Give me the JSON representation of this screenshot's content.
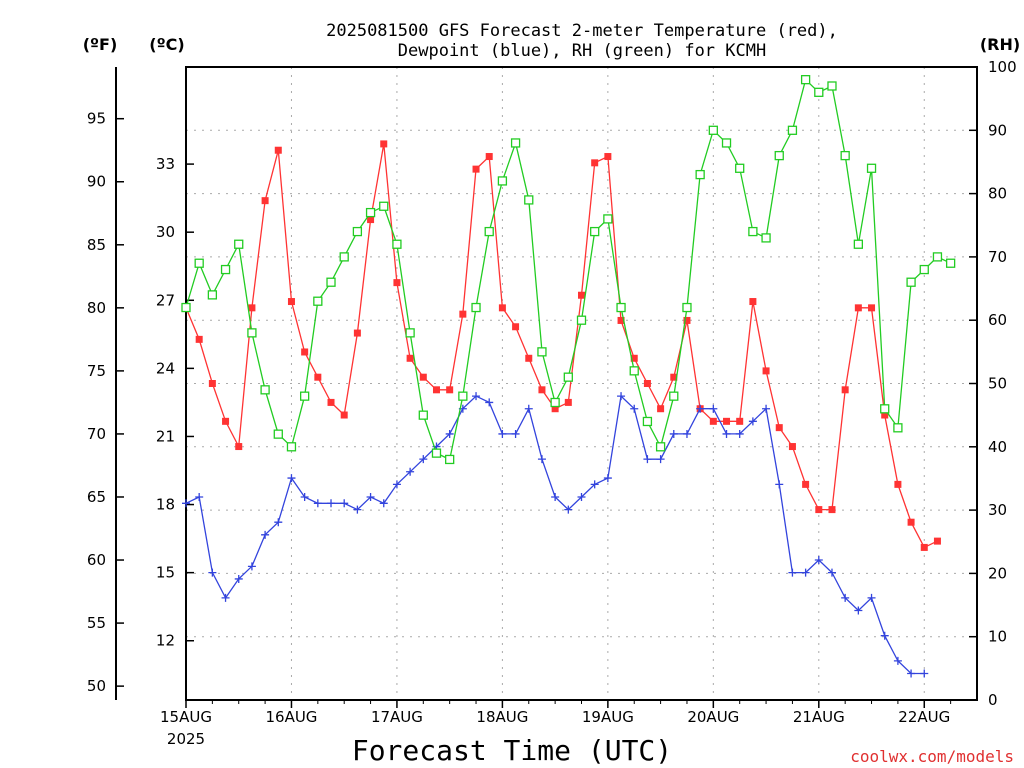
{
  "title_line1": "2025081500 GFS Forecast 2-meter Temperature (red),",
  "title_line2": "Dewpoint (blue), RH (green) for KCMH",
  "unit_f": "(ºF)",
  "unit_c": "(ºC)",
  "unit_rh": "(RH)",
  "xlabel": "Forecast Time (UTC)",
  "credit": "coolwx.com/models",
  "year_label": "2025",
  "colors": {
    "temperature": "#ff3333",
    "dewpoint": "#3344dd",
    "rh": "#22cc22"
  },
  "chart_data": {
    "type": "line",
    "x_axis": {
      "unit": "hours since 15AUG 00Z",
      "range": [
        0,
        180
      ],
      "ticks": [
        0,
        24,
        48,
        72,
        96,
        120,
        144,
        168
      ],
      "tick_labels": [
        "15AUG",
        "16AUG",
        "17AUG",
        "18AUG",
        "19AUG",
        "20AUG",
        "21AUG",
        "22AUG"
      ]
    },
    "y_left_f": {
      "range": [
        48.9,
        99.1
      ],
      "ticks": [
        50,
        55,
        60,
        65,
        70,
        75,
        80,
        85,
        90,
        95
      ]
    },
    "y_left_c": {
      "ticks": [
        12,
        15,
        18,
        21,
        24,
        27,
        30,
        33
      ]
    },
    "y_right_rh": {
      "range": [
        0,
        100
      ],
      "ticks": [
        0,
        10,
        20,
        30,
        40,
        50,
        60,
        70,
        80,
        90,
        100
      ]
    },
    "grid": true,
    "series": [
      {
        "name": "Temperature",
        "color": "#ff3333",
        "marker": "filled-square",
        "axis": "F",
        "points": [
          [
            0,
            80
          ],
          [
            3,
            77.5
          ],
          [
            6,
            74
          ],
          [
            9,
            71
          ],
          [
            12,
            69
          ],
          [
            15,
            80
          ],
          [
            18,
            88.5
          ],
          [
            21,
            92.5
          ],
          [
            24,
            80.5
          ],
          [
            27,
            76.5
          ],
          [
            30,
            74.5
          ],
          [
            33,
            72.5
          ],
          [
            36,
            71.5
          ],
          [
            39,
            78
          ],
          [
            42,
            87
          ],
          [
            45,
            93
          ],
          [
            48,
            82
          ],
          [
            51,
            76
          ],
          [
            54,
            74.5
          ],
          [
            57,
            73.5
          ],
          [
            60,
            73.5
          ],
          [
            63,
            79.5
          ],
          [
            66,
            91
          ],
          [
            69,
            92
          ],
          [
            72,
            80
          ],
          [
            75,
            78.5
          ],
          [
            78,
            76
          ],
          [
            81,
            73.5
          ],
          [
            84,
            72
          ],
          [
            87,
            72.5
          ],
          [
            90,
            81
          ],
          [
            93,
            91.5
          ],
          [
            96,
            92
          ],
          [
            99,
            79
          ],
          [
            102,
            76
          ],
          [
            105,
            74
          ],
          [
            108,
            72
          ],
          [
            111,
            74.5
          ],
          [
            114,
            79
          ],
          [
            117,
            72
          ],
          [
            120,
            71
          ],
          [
            123,
            71
          ],
          [
            126,
            71
          ],
          [
            129,
            80.5
          ],
          [
            132,
            75
          ],
          [
            135,
            70.5
          ],
          [
            138,
            69
          ],
          [
            141,
            66
          ],
          [
            144,
            64
          ],
          [
            147,
            64
          ],
          [
            150,
            73.5
          ],
          [
            153,
            80
          ],
          [
            156,
            80
          ],
          [
            159,
            71.5
          ],
          [
            162,
            66
          ],
          [
            165,
            63
          ],
          [
            168,
            61
          ],
          [
            171,
            61.5
          ]
        ]
      },
      {
        "name": "Dewpoint",
        "color": "#3344dd",
        "marker": "plus",
        "axis": "F",
        "points": [
          [
            0,
            64.5
          ],
          [
            3,
            65
          ],
          [
            6,
            59
          ],
          [
            9,
            57
          ],
          [
            12,
            58.5
          ],
          [
            15,
            59.5
          ],
          [
            18,
            62
          ],
          [
            21,
            63
          ],
          [
            24,
            66.5
          ],
          [
            27,
            65
          ],
          [
            30,
            64.5
          ],
          [
            33,
            64.5
          ],
          [
            36,
            64.5
          ],
          [
            39,
            64
          ],
          [
            42,
            65
          ],
          [
            45,
            64.5
          ],
          [
            48,
            66
          ],
          [
            51,
            67
          ],
          [
            54,
            68
          ],
          [
            57,
            69
          ],
          [
            60,
            70
          ],
          [
            63,
            72
          ],
          [
            66,
            73
          ],
          [
            69,
            72.5
          ],
          [
            72,
            70
          ],
          [
            75,
            70
          ],
          [
            78,
            72
          ],
          [
            81,
            68
          ],
          [
            84,
            65
          ],
          [
            87,
            64
          ],
          [
            90,
            65
          ],
          [
            93,
            66
          ],
          [
            96,
            66.5
          ],
          [
            99,
            73
          ],
          [
            102,
            72
          ],
          [
            105,
            68
          ],
          [
            108,
            68
          ],
          [
            111,
            70
          ],
          [
            114,
            70
          ],
          [
            117,
            72
          ],
          [
            120,
            72
          ],
          [
            123,
            70
          ],
          [
            126,
            70
          ],
          [
            129,
            71
          ],
          [
            132,
            72
          ],
          [
            135,
            66
          ],
          [
            138,
            59
          ],
          [
            141,
            59
          ],
          [
            144,
            60
          ],
          [
            147,
            59
          ],
          [
            150,
            57
          ],
          [
            153,
            56
          ],
          [
            156,
            57
          ],
          [
            159,
            54
          ],
          [
            162,
            52
          ],
          [
            165,
            51
          ],
          [
            168,
            51
          ]
        ]
      },
      {
        "name": "RH",
        "color": "#22cc22",
        "marker": "open-square",
        "axis": "RH",
        "points": [
          [
            0,
            62
          ],
          [
            3,
            69
          ],
          [
            6,
            64
          ],
          [
            9,
            68
          ],
          [
            12,
            72
          ],
          [
            15,
            58
          ],
          [
            18,
            49
          ],
          [
            21,
            42
          ],
          [
            24,
            40
          ],
          [
            27,
            48
          ],
          [
            30,
            63
          ],
          [
            33,
            66
          ],
          [
            36,
            70
          ],
          [
            39,
            74
          ],
          [
            42,
            77
          ],
          [
            45,
            78
          ],
          [
            48,
            72
          ],
          [
            51,
            58
          ],
          [
            54,
            45
          ],
          [
            57,
            39
          ],
          [
            60,
            38
          ],
          [
            63,
            48
          ],
          [
            66,
            62
          ],
          [
            69,
            74
          ],
          [
            72,
            82
          ],
          [
            75,
            88
          ],
          [
            78,
            79
          ],
          [
            81,
            55
          ],
          [
            84,
            47
          ],
          [
            87,
            51
          ],
          [
            90,
            60
          ],
          [
            93,
            74
          ],
          [
            96,
            76
          ],
          [
            99,
            62
          ],
          [
            102,
            52
          ],
          [
            105,
            44
          ],
          [
            108,
            40
          ],
          [
            111,
            48
          ],
          [
            114,
            62
          ],
          [
            117,
            83
          ],
          [
            120,
            90
          ],
          [
            123,
            88
          ],
          [
            126,
            84
          ],
          [
            129,
            74
          ],
          [
            132,
            73
          ],
          [
            135,
            86
          ],
          [
            138,
            90
          ],
          [
            141,
            98
          ],
          [
            144,
            96
          ],
          [
            147,
            97
          ],
          [
            150,
            86
          ],
          [
            153,
            72
          ],
          [
            156,
            84
          ],
          [
            159,
            46
          ],
          [
            162,
            43
          ],
          [
            165,
            66
          ],
          [
            168,
            68
          ],
          [
            171,
            70
          ],
          [
            174,
            69
          ]
        ]
      }
    ]
  }
}
